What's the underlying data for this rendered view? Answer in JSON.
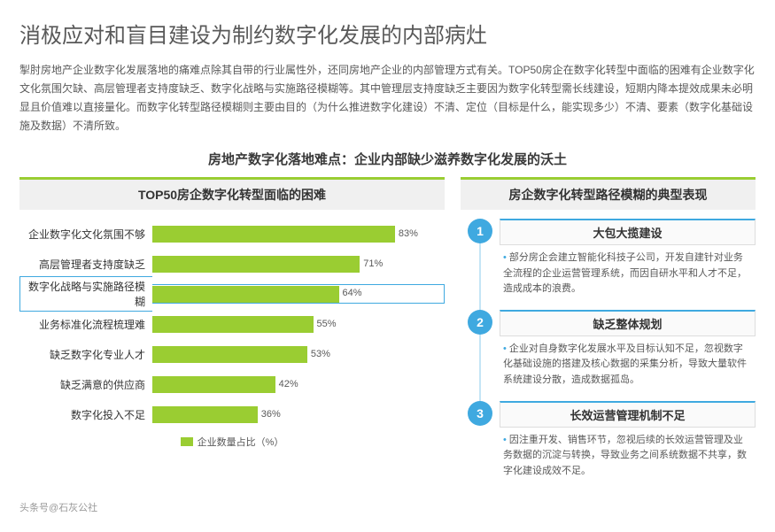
{
  "title": "消极应对和盲目建设为制约数字化发展的内部病灶",
  "description": "掣肘房地产企业数字化发展落地的痛难点除其自带的行业属性外，还同房地产企业的内部管理方式有关。TOP50房企在数字化转型中面临的困难有企业数字化文化氛围欠缺、高层管理者支持度缺乏、数字化战略与实施路径模糊等。其中管理层支持度缺乏主要因为数字化转型需长线建设，短期内降本提效成果未必明显且价值难以直接量化。而数字化转型路径模糊则主要由目的（为什么推进数字化建设）不清、定位（目标是什么，能实现多少）不清、要素（数字化基础设施及数据）不清所致。",
  "subtitle": "房地产数字化落地难点：企业内部缺少滋养数字化发展的沃土",
  "left_header": "TOP50房企数字化转型面临的困难",
  "right_header": "房企数字化转型路径模糊的典型表现",
  "chart": {
    "type": "bar",
    "bar_color": "#9acd32",
    "highlight_color": "#3fa9e0",
    "xmax": 100,
    "rows": [
      {
        "label": "企业数字化文化氛围不够",
        "value": 83,
        "hl": false
      },
      {
        "label": "高层管理者支持度缺乏",
        "value": 71,
        "hl": false
      },
      {
        "label": "数字化战略与实施路径模糊",
        "value": 64,
        "hl": true
      },
      {
        "label": "业务标准化流程梳理难",
        "value": 55,
        "hl": false
      },
      {
        "label": "缺乏数字化专业人才",
        "value": 53,
        "hl": false
      },
      {
        "label": "缺乏满意的供应商",
        "value": 42,
        "hl": false
      },
      {
        "label": "数字化投入不足",
        "value": 36,
        "hl": false
      }
    ],
    "legend": "企业数量占比（%）"
  },
  "items": [
    {
      "num": "1",
      "title": "大包大揽建设",
      "desc": "部分房企会建立智能化科技子公司，开发自建针对业务全流程的企业运营管理系统，而因自研水平和人才不足，造成成本的浪费。"
    },
    {
      "num": "2",
      "title": "缺乏整体规划",
      "desc": "企业对自身数字化发展水平及目标认知不足，忽视数字化基础设施的搭建及核心数据的采集分析，导致大量软件系统建设分散，造成数据孤岛。"
    },
    {
      "num": "3",
      "title": "长效运营管理机制不足",
      "desc": "因注重开发、销售环节，忽视后续的长效运营管理及业务数据的沉淀与转换，导致业务之间系统数据不共享，数字化建设成效不足。"
    }
  ],
  "footer": "头条号@石灰公社",
  "accent_color": "#3fa9e0"
}
